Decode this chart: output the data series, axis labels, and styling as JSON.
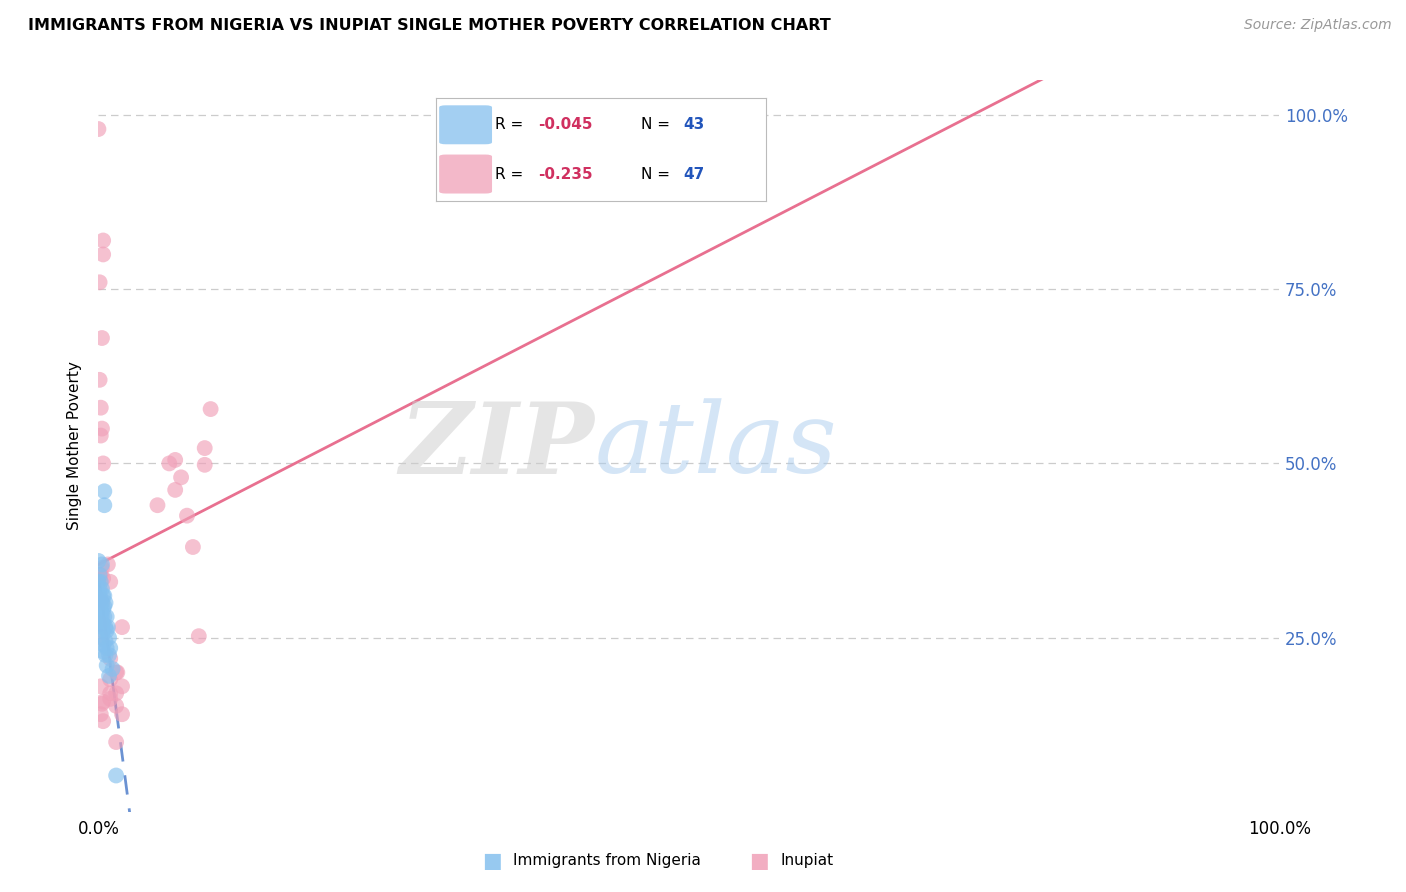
{
  "title": "IMMIGRANTS FROM NIGERIA VS INUPIAT SINGLE MOTHER POVERTY CORRELATION CHART",
  "source": "Source: ZipAtlas.com",
  "ylabel": "Single Mother Poverty",
  "legend_blue_r": "-0.045",
  "legend_blue_n": "43",
  "legend_pink_r": "-0.235",
  "legend_pink_n": "47",
  "blue_color": "#85C0EE",
  "pink_color": "#F0A0B8",
  "blue_line_color": "#3A6EC4",
  "pink_line_color": "#E87090",
  "blue_scatter": [
    [
      0.0,
      0.36
    ],
    [
      0.0,
      0.33
    ],
    [
      0.001,
      0.34
    ],
    [
      0.001,
      0.32
    ],
    [
      0.001,
      0.3
    ],
    [
      0.001,
      0.31
    ],
    [
      0.002,
      0.33
    ],
    [
      0.002,
      0.3
    ],
    [
      0.002,
      0.29
    ],
    [
      0.002,
      0.28
    ],
    [
      0.002,
      0.27
    ],
    [
      0.003,
      0.355
    ],
    [
      0.003,
      0.32
    ],
    [
      0.003,
      0.3
    ],
    [
      0.003,
      0.28
    ],
    [
      0.003,
      0.265
    ],
    [
      0.003,
      0.25
    ],
    [
      0.004,
      0.31
    ],
    [
      0.004,
      0.29
    ],
    [
      0.004,
      0.27
    ],
    [
      0.004,
      0.26
    ],
    [
      0.004,
      0.24
    ],
    [
      0.004,
      0.23
    ],
    [
      0.005,
      0.44
    ],
    [
      0.005,
      0.46
    ],
    [
      0.005,
      0.31
    ],
    [
      0.005,
      0.295
    ],
    [
      0.005,
      0.28
    ],
    [
      0.006,
      0.3
    ],
    [
      0.006,
      0.265
    ],
    [
      0.006,
      0.245
    ],
    [
      0.006,
      0.225
    ],
    [
      0.007,
      0.28
    ],
    [
      0.007,
      0.26
    ],
    [
      0.007,
      0.235
    ],
    [
      0.007,
      0.21
    ],
    [
      0.008,
      0.265
    ],
    [
      0.009,
      0.25
    ],
    [
      0.009,
      0.225
    ],
    [
      0.009,
      0.195
    ],
    [
      0.01,
      0.235
    ],
    [
      0.012,
      0.205
    ],
    [
      0.015,
      0.052
    ]
  ],
  "pink_scatter": [
    [
      0.0,
      0.98
    ],
    [
      0.001,
      0.76
    ],
    [
      0.001,
      0.62
    ],
    [
      0.002,
      0.58
    ],
    [
      0.002,
      0.54
    ],
    [
      0.002,
      0.34
    ],
    [
      0.002,
      0.305
    ],
    [
      0.002,
      0.27
    ],
    [
      0.002,
      0.25
    ],
    [
      0.002,
      0.18
    ],
    [
      0.002,
      0.14
    ],
    [
      0.003,
      0.68
    ],
    [
      0.003,
      0.55
    ],
    [
      0.003,
      0.35
    ],
    [
      0.003,
      0.3
    ],
    [
      0.003,
      0.155
    ],
    [
      0.004,
      0.82
    ],
    [
      0.004,
      0.8
    ],
    [
      0.004,
      0.5
    ],
    [
      0.004,
      0.335
    ],
    [
      0.004,
      0.158
    ],
    [
      0.004,
      0.13
    ],
    [
      0.008,
      0.355
    ],
    [
      0.01,
      0.33
    ],
    [
      0.01,
      0.22
    ],
    [
      0.01,
      0.19
    ],
    [
      0.01,
      0.17
    ],
    [
      0.01,
      0.162
    ],
    [
      0.015,
      0.2
    ],
    [
      0.015,
      0.17
    ],
    [
      0.015,
      0.152
    ],
    [
      0.015,
      0.1
    ],
    [
      0.016,
      0.2
    ],
    [
      0.02,
      0.265
    ],
    [
      0.02,
      0.18
    ],
    [
      0.02,
      0.14
    ],
    [
      0.05,
      0.44
    ],
    [
      0.06,
      0.5
    ],
    [
      0.065,
      0.505
    ],
    [
      0.065,
      0.462
    ],
    [
      0.07,
      0.48
    ],
    [
      0.075,
      0.425
    ],
    [
      0.08,
      0.38
    ],
    [
      0.085,
      0.252
    ],
    [
      0.09,
      0.522
    ],
    [
      0.09,
      0.498
    ],
    [
      0.095,
      0.578
    ]
  ],
  "xlim": [
    0.0,
    1.0
  ],
  "ylim": [
    0.0,
    1.0
  ],
  "background_color": "#FFFFFF",
  "grid_color": "#CCCCCC",
  "watermark_zip_color": "#CCCCCC",
  "watermark_atlas_color": "#AACCEE"
}
